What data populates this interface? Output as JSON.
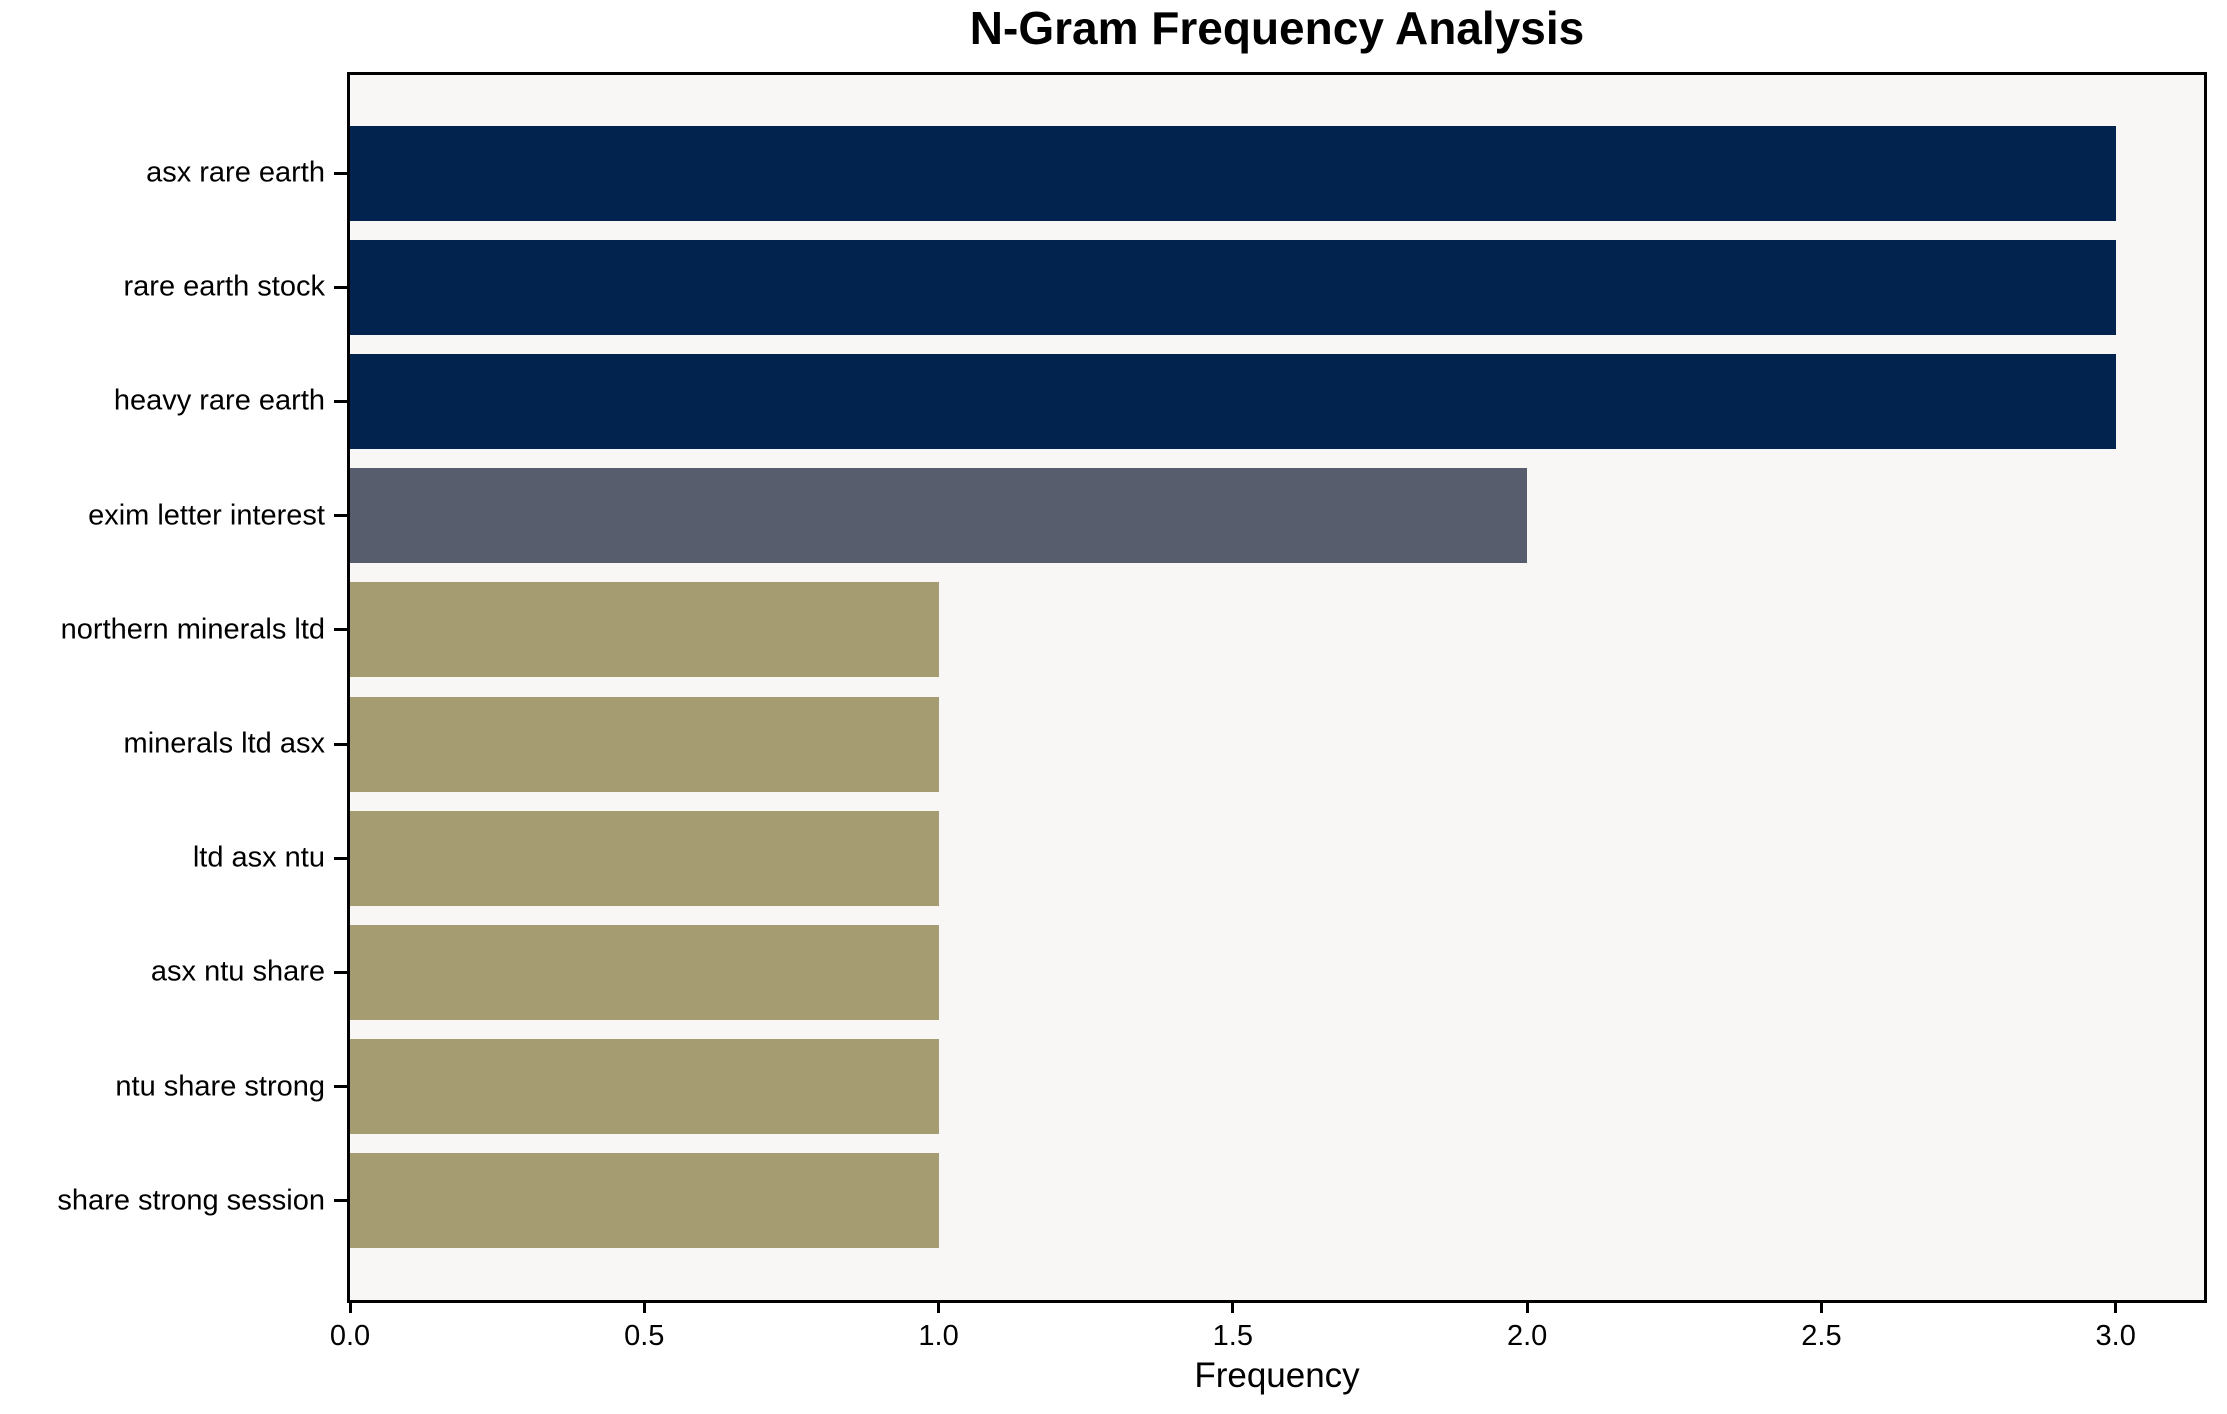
{
  "chart_data": {
    "type": "bar",
    "orientation": "horizontal",
    "title": "N-Gram Frequency Analysis",
    "xlabel": "Frequency",
    "ylabel": "",
    "categories": [
      "asx rare earth",
      "rare earth stock",
      "heavy rare earth",
      "exim letter interest",
      "northern minerals ltd",
      "minerals ltd asx",
      "ltd asx ntu",
      "asx ntu share",
      "ntu share strong",
      "share strong session"
    ],
    "values": [
      3,
      3,
      3,
      2,
      1,
      1,
      1,
      1,
      1,
      1
    ],
    "bar_colors": [
      "#02234E",
      "#02234E",
      "#02234E",
      "#575D6C",
      "#A69C72",
      "#A69C72",
      "#A69C72",
      "#A69C72",
      "#A69C72",
      "#A69C72"
    ],
    "x_ticks": [
      0.0,
      0.5,
      1.0,
      1.5,
      2.0,
      2.5,
      3.0
    ],
    "x_tick_labels": [
      "0.0",
      "0.5",
      "1.0",
      "1.5",
      "2.0",
      "2.5",
      "3.0"
    ],
    "xlim": [
      0,
      3.15
    ],
    "grid": false,
    "legend": null,
    "colors": {
      "plot_background": "#F8F7F5",
      "figure_background": "#FFFFFF",
      "axis": "#000000",
      "text": "#000000"
    }
  }
}
